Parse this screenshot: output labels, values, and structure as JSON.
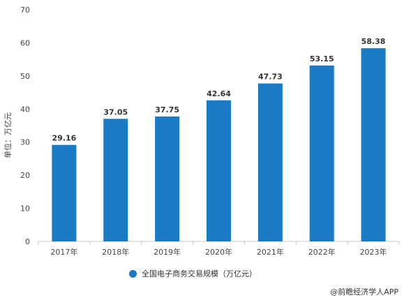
{
  "chart_data": {
    "type": "bar",
    "categories": [
      "2017年",
      "2018年",
      "2019年",
      "2020年",
      "2021年",
      "2022年",
      "2023年"
    ],
    "series": [
      {
        "name": "全国电子商务交易规模（万亿元）",
        "values": [
          29.16,
          37.05,
          37.75,
          42.64,
          47.73,
          53.15,
          58.38
        ]
      }
    ],
    "value_labels": [
      "29.16",
      "37.05",
      "37.75",
      "42.64",
      "47.73",
      "53.15",
      "58.38"
    ],
    "ylabel": "单位：万亿元",
    "ylim": [
      0,
      70
    ],
    "yticks": [
      "0",
      "10",
      "20",
      "30",
      "40",
      "50",
      "60",
      "70"
    ],
    "grid": false,
    "legend_position": "bottom",
    "bar_color": "#1b7ac4"
  },
  "credit": "@前瞻经济学人APP"
}
